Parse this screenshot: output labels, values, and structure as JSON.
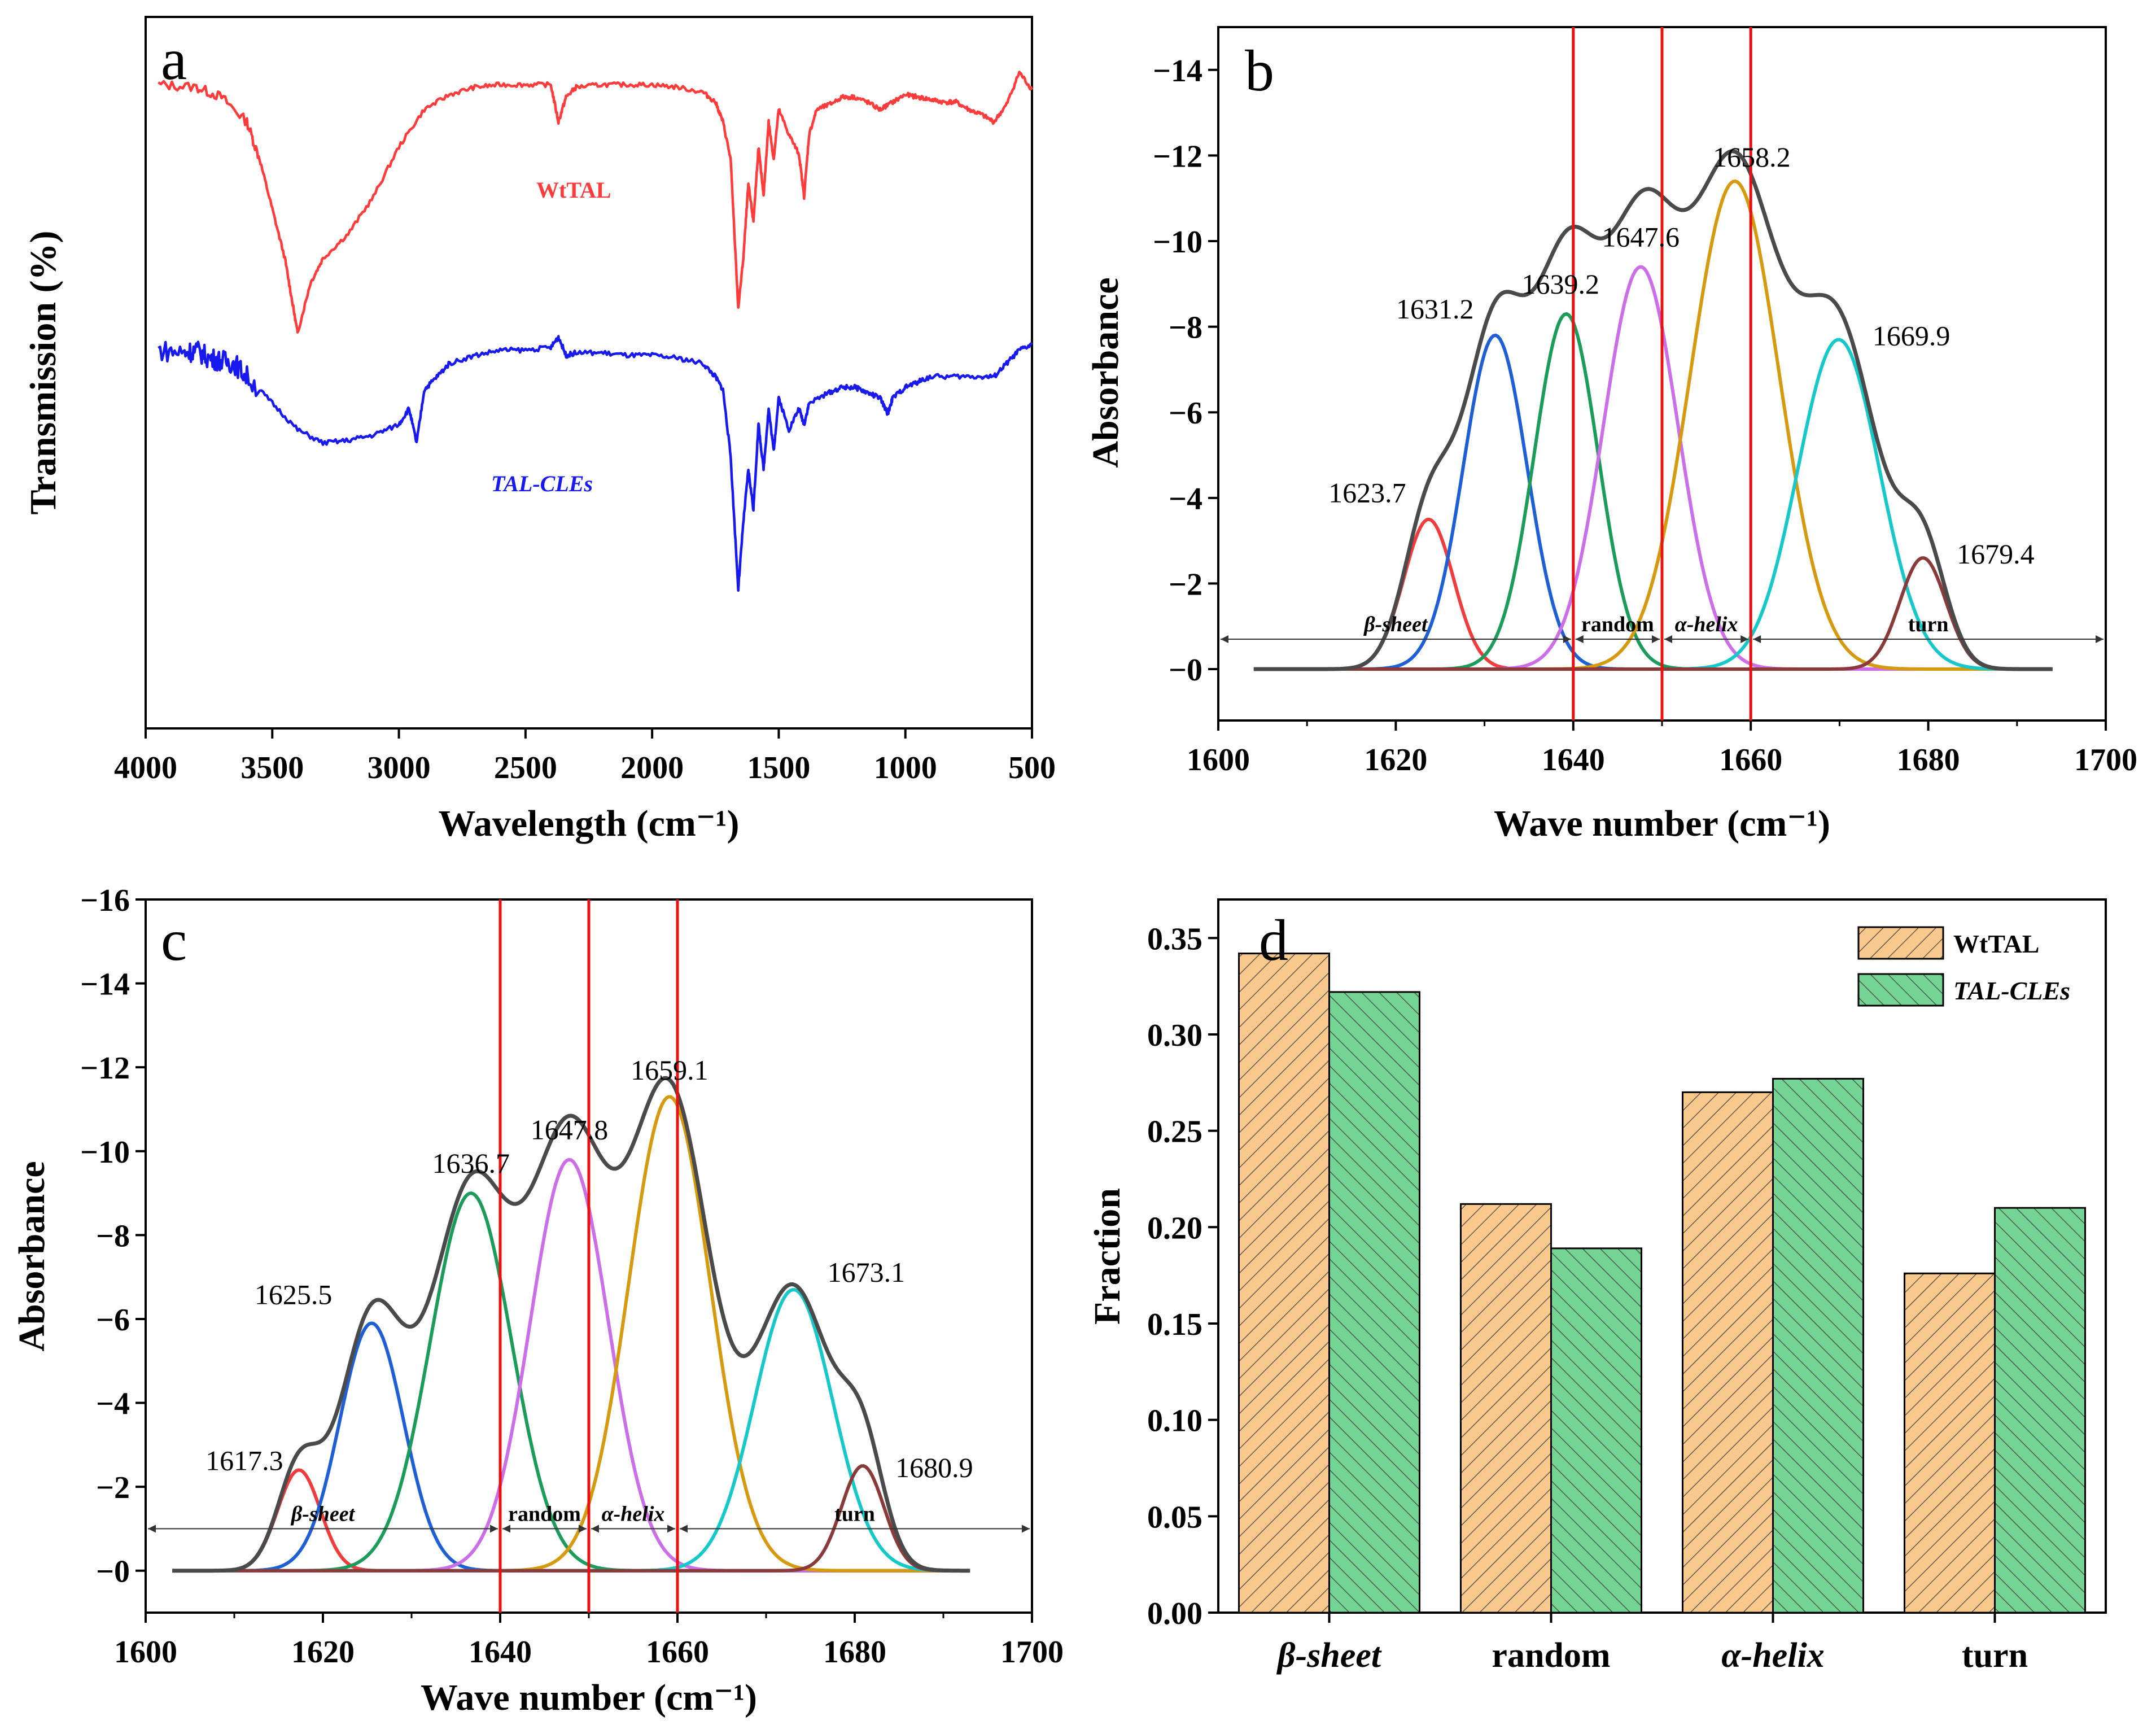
{
  "figure": {
    "panels": [
      "a",
      "b",
      "c",
      "d"
    ]
  },
  "chart_data": [
    {
      "panel": "a",
      "type": "line",
      "title": "",
      "xlabel": "Wavelength (cm⁻¹)",
      "ylabel": "Transmission (%)",
      "xlim": [
        4000,
        500
      ],
      "xticks": [
        "4000",
        "3500",
        "3000",
        "2500",
        "2000",
        "1500",
        "1000",
        "500"
      ],
      "series": [
        {
          "name": "WtTAL",
          "color": "#ff3b3b",
          "x": [
            3950,
            3800,
            3700,
            3600,
            3550,
            3500,
            3450,
            3420,
            3400,
            3350,
            3300,
            3200,
            3100,
            3000,
            2900,
            2800,
            2700,
            2600,
            2500,
            2400,
            2370,
            2340,
            2300,
            2200,
            2100,
            2000,
            1900,
            1800,
            1750,
            1720,
            1690,
            1660,
            1640,
            1620,
            1600,
            1580,
            1560,
            1540,
            1520,
            1500,
            1460,
            1420,
            1400,
            1380,
            1350,
            1300,
            1250,
            1200,
            1150,
            1100,
            1050,
            1000,
            950,
            900,
            850,
            800,
            750,
            700,
            650,
            600,
            550,
            500
          ],
          "y": [
            1.0,
            0.99,
            0.95,
            0.85,
            0.7,
            0.5,
            0.3,
            0.12,
            0.0,
            0.2,
            0.3,
            0.4,
            0.55,
            0.75,
            0.9,
            0.96,
            0.99,
            1.0,
            1.0,
            1.0,
            0.85,
            0.95,
            0.99,
            1.0,
            1.0,
            1.0,
            0.99,
            0.97,
            0.93,
            0.85,
            0.7,
            0.1,
            0.3,
            0.6,
            0.45,
            0.75,
            0.55,
            0.85,
            0.7,
            0.9,
            0.8,
            0.72,
            0.55,
            0.8,
            0.9,
            0.92,
            0.95,
            0.95,
            0.93,
            0.9,
            0.93,
            0.96,
            0.95,
            0.94,
            0.93,
            0.93,
            0.9,
            0.88,
            0.85,
            0.92,
            1.05,
            0.98
          ]
        },
        {
          "name": "TAL-CLEs",
          "color": "#1818f0",
          "x": [
            3950,
            3850,
            3800,
            3750,
            3700,
            3650,
            3600,
            3500,
            3400,
            3300,
            3200,
            3100,
            3000,
            2960,
            2930,
            2900,
            2850,
            2800,
            2700,
            2600,
            2500,
            2400,
            2370,
            2340,
            2300,
            2200,
            2100,
            2000,
            1900,
            1800,
            1750,
            1720,
            1690,
            1660,
            1640,
            1620,
            1600,
            1580,
            1560,
            1540,
            1520,
            1500,
            1460,
            1420,
            1400,
            1380,
            1300,
            1250,
            1200,
            1150,
            1100,
            1070,
            1050,
            1000,
            950,
            900,
            800,
            700,
            650,
            600,
            550,
            500
          ],
          "y": [
            1.0,
            0.99,
            1.0,
            0.97,
            0.96,
            0.95,
            0.9,
            0.8,
            0.7,
            0.65,
            0.66,
            0.68,
            0.72,
            0.78,
            0.65,
            0.85,
            0.9,
            0.95,
            0.98,
            1.0,
            1.0,
            1.01,
            1.05,
            0.98,
            0.99,
            0.99,
            0.98,
            0.98,
            0.97,
            0.95,
            0.9,
            0.85,
            0.6,
            0.1,
            0.35,
            0.55,
            0.4,
            0.72,
            0.55,
            0.78,
            0.62,
            0.82,
            0.7,
            0.78,
            0.72,
            0.8,
            0.84,
            0.86,
            0.86,
            0.84,
            0.82,
            0.76,
            0.82,
            0.86,
            0.88,
            0.9,
            0.9,
            0.9,
            0.9,
            0.95,
            1.0,
            1.02
          ]
        }
      ]
    },
    {
      "panel": "b",
      "type": "line",
      "title": "",
      "xlabel": "Wave number (cm⁻¹)",
      "ylabel": "Absorbance",
      "xlim": [
        1600,
        1700
      ],
      "ylim": [
        1.2,
        -15
      ],
      "xticks": [
        "1600",
        "1620",
        "1640",
        "1660",
        "1680",
        "1700"
      ],
      "yticks": [
        "−14",
        "−12",
        "−10",
        "−8",
        "−6",
        "−4",
        "−2",
        "−0"
      ],
      "xrange": [
        1604,
        1694
      ],
      "peaks": [
        {
          "center": 1623.7,
          "amp": -3.5,
          "width": 2.8,
          "color": "#f03c3c",
          "label": "1623.7"
        },
        {
          "center": 1631.2,
          "amp": -7.8,
          "width": 3.6,
          "color": "#1f5fd6",
          "label": "1631.2"
        },
        {
          "center": 1639.2,
          "amp": -8.3,
          "width": 3.6,
          "color": "#1c9c5a",
          "label": "1639.2"
        },
        {
          "center": 1647.6,
          "amp": -9.4,
          "width": 4.2,
          "color": "#cc6ee8",
          "label": "1647.6"
        },
        {
          "center": 1658.2,
          "amp": -11.4,
          "width": 5.0,
          "color": "#d69a10",
          "label": "1658.2"
        },
        {
          "center": 1669.9,
          "amp": -7.7,
          "width": 4.6,
          "color": "#16c8c8",
          "label": "1669.9"
        },
        {
          "center": 1679.4,
          "amp": -2.6,
          "width": 2.6,
          "color": "#8b3a3a",
          "label": "1679.4"
        }
      ],
      "envelope_color": "#4a4a4a",
      "dividers": [
        1640,
        1650,
        1660
      ],
      "regions": [
        {
          "label": "β-sheet",
          "from": 1600,
          "to": 1640
        },
        {
          "label": "random",
          "from": 1640,
          "to": 1650
        },
        {
          "label": "α-helix",
          "from": 1650,
          "to": 1660
        },
        {
          "label": "turn",
          "from": 1660,
          "to": 1700
        }
      ]
    },
    {
      "panel": "c",
      "type": "line",
      "title": "",
      "xlabel": "Wave number (cm⁻¹)",
      "ylabel": "Absorbance",
      "xlim": [
        1600,
        1700
      ],
      "ylim": [
        1.0,
        -16
      ],
      "xticks": [
        "1600",
        "1620",
        "1640",
        "1660",
        "1680",
        "1700"
      ],
      "yticks": [
        "−16",
        "−14",
        "−12",
        "−10",
        "−8",
        "−6",
        "−4",
        "−2",
        "−0"
      ],
      "xrange": [
        1603,
        1693
      ],
      "peaks": [
        {
          "center": 1617.3,
          "amp": -2.4,
          "width": 2.4,
          "color": "#f03c3c",
          "label": "1617.3"
        },
        {
          "center": 1625.5,
          "amp": -5.9,
          "width": 3.6,
          "color": "#1f5fd6",
          "label": "1625.5"
        },
        {
          "center": 1636.7,
          "amp": -9.0,
          "width": 4.6,
          "color": "#1c9c5a",
          "label": "1636.7"
        },
        {
          "center": 1647.8,
          "amp": -9.8,
          "width": 4.4,
          "color": "#cc6ee8",
          "label": "1647.8"
        },
        {
          "center": 1659.1,
          "amp": -11.3,
          "width": 4.6,
          "color": "#d69a10",
          "label": "1659.1"
        },
        {
          "center": 1673.1,
          "amp": -6.7,
          "width": 4.4,
          "color": "#16c8c8",
          "label": "1673.1"
        },
        {
          "center": 1680.9,
          "amp": -2.5,
          "width": 2.4,
          "color": "#8b3a3a",
          "label": "1680.9"
        }
      ],
      "envelope_color": "#4a4a4a",
      "dividers": [
        1640,
        1650,
        1660
      ],
      "regions": [
        {
          "label": "β-sheet",
          "from": 1600,
          "to": 1640
        },
        {
          "label": "random",
          "from": 1640,
          "to": 1650
        },
        {
          "label": "α-helix",
          "from": 1650,
          "to": 1660
        },
        {
          "label": "turn",
          "from": 1660,
          "to": 1700
        }
      ]
    },
    {
      "panel": "d",
      "type": "bar",
      "title": "",
      "xlabel": "",
      "ylabel": "Fraction",
      "ylim": [
        0,
        0.37
      ],
      "yticks": [
        "0.00",
        "0.05",
        "0.10",
        "0.15",
        "0.20",
        "0.25",
        "0.30",
        "0.35"
      ],
      "categories": [
        "β-sheet",
        "random",
        "α-helix",
        "turn"
      ],
      "series": [
        {
          "name": "WtTAL",
          "color": "#f9c88c",
          "values": [
            0.342,
            0.212,
            0.27,
            0.176
          ]
        },
        {
          "name": "TAL-CLEs",
          "color": "#74d494",
          "values": [
            0.322,
            0.189,
            0.277,
            0.21
          ]
        }
      ],
      "legend": "top-right"
    }
  ]
}
